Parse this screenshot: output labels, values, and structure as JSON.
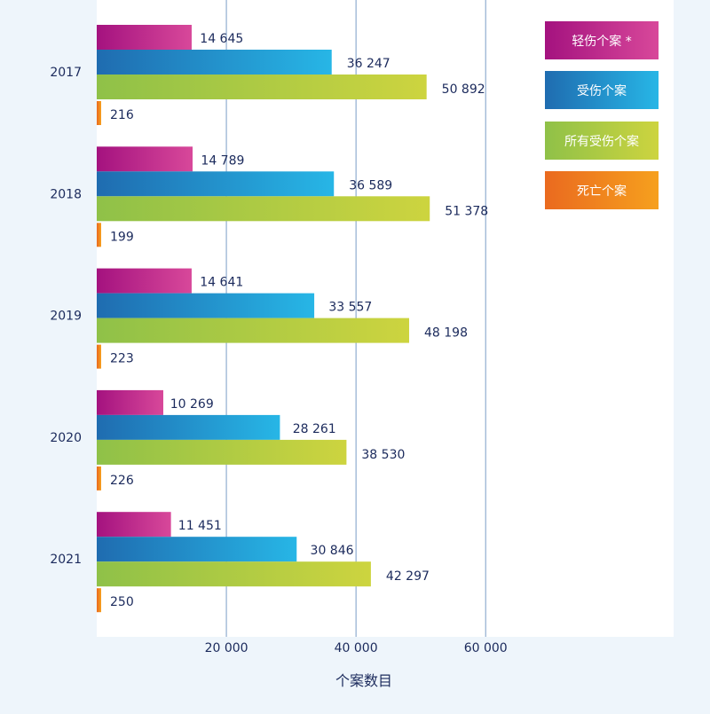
{
  "chart_data": {
    "type": "bar",
    "orientation": "horizontal",
    "categories": [
      "2017",
      "2018",
      "2019",
      "2020",
      "2021"
    ],
    "series": [
      {
        "name": "轻伤个案 *",
        "values": [
          14645,
          14789,
          14641,
          10269,
          11451
        ],
        "labels": [
          "14 645",
          "14 789",
          "14 641",
          "10 269",
          "11 451"
        ],
        "color_start": "#a4127f",
        "color_end": "#d8489a"
      },
      {
        "name": "受伤个案",
        "values": [
          36247,
          36589,
          33557,
          28261,
          30846
        ],
        "labels": [
          "36 247",
          "36 589",
          "33 557",
          "28 261",
          "30 846"
        ],
        "color_start": "#1f6cb0",
        "color_end": "#27b6e6"
      },
      {
        "name": "所有受伤个案",
        "values": [
          50892,
          51378,
          48198,
          38530,
          42297
        ],
        "labels": [
          "50 892",
          "51 378",
          "48 198",
          "38 530",
          "42 297"
        ],
        "color_start": "#8fc148",
        "color_end": "#cdd43f"
      },
      {
        "name": "死亡个案",
        "values": [
          216,
          199,
          223,
          226,
          250
        ],
        "labels": [
          "216",
          "199",
          "223",
          "226",
          "250"
        ],
        "color_start": "#ea6a1f",
        "color_end": "#f6a01e"
      }
    ],
    "xticks": [
      20000,
      40000,
      60000
    ],
    "xtick_labels": [
      "20 000",
      "40 000",
      "60 000"
    ],
    "xlim": [
      0,
      89000
    ],
    "xlabel": "个案数目",
    "ylabel": "",
    "grid": "vertical",
    "legend_position": "top-right"
  }
}
